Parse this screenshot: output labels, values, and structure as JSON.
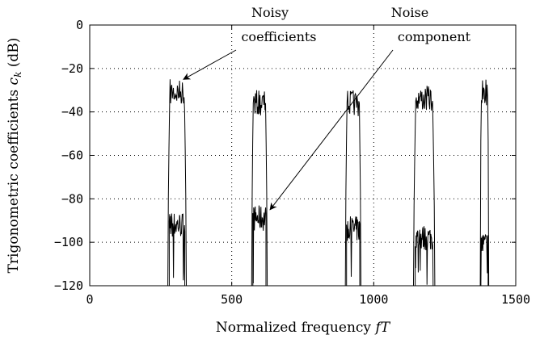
{
  "chart_data": {
    "type": "line",
    "title": "",
    "xlabel_text": "Normalized frequency ",
    "xlabel_var": "fT",
    "ylabel_text": "Trigonometric coefficients ",
    "ylabel_var": "c",
    "ylabel_sub": "k",
    "ylabel_unit": " (dB)",
    "xlim": [
      0,
      1500
    ],
    "ylim": [
      -120,
      0
    ],
    "xticks": [
      0,
      500,
      1000,
      1500
    ],
    "yticks": [
      0,
      -20,
      -40,
      -60,
      -80,
      -100,
      -120
    ],
    "xtick_labels": [
      "0",
      "500",
      "1000",
      "1500"
    ],
    "ytick_labels": [
      "0",
      "−20",
      "−40",
      "−60",
      "−80",
      "−100",
      "−120"
    ],
    "grid": true,
    "line_color": "#000000",
    "bands": [
      {
        "start": 275,
        "end": 340,
        "signal_level_db": -25,
        "noise_level_db": -92
      },
      {
        "start": 570,
        "end": 625,
        "signal_level_db": -30,
        "noise_level_db": -89
      },
      {
        "start": 900,
        "end": 955,
        "signal_level_db": -30,
        "noise_level_db": -94
      },
      {
        "start": 1140,
        "end": 1215,
        "signal_level_db": -28,
        "noise_level_db": -98
      },
      {
        "start": 1375,
        "end": 1405,
        "signal_level_db": -25,
        "noise_level_db": -101
      }
    ],
    "annotations": [
      {
        "id": "noisy",
        "lines": [
          "Noisy",
          "coefficients"
        ],
        "target": {
          "x": 330,
          "y": -25
        }
      },
      {
        "id": "noise",
        "lines": [
          "Noise",
          "component"
        ],
        "target": {
          "x": 635,
          "y": -85
        }
      }
    ]
  }
}
